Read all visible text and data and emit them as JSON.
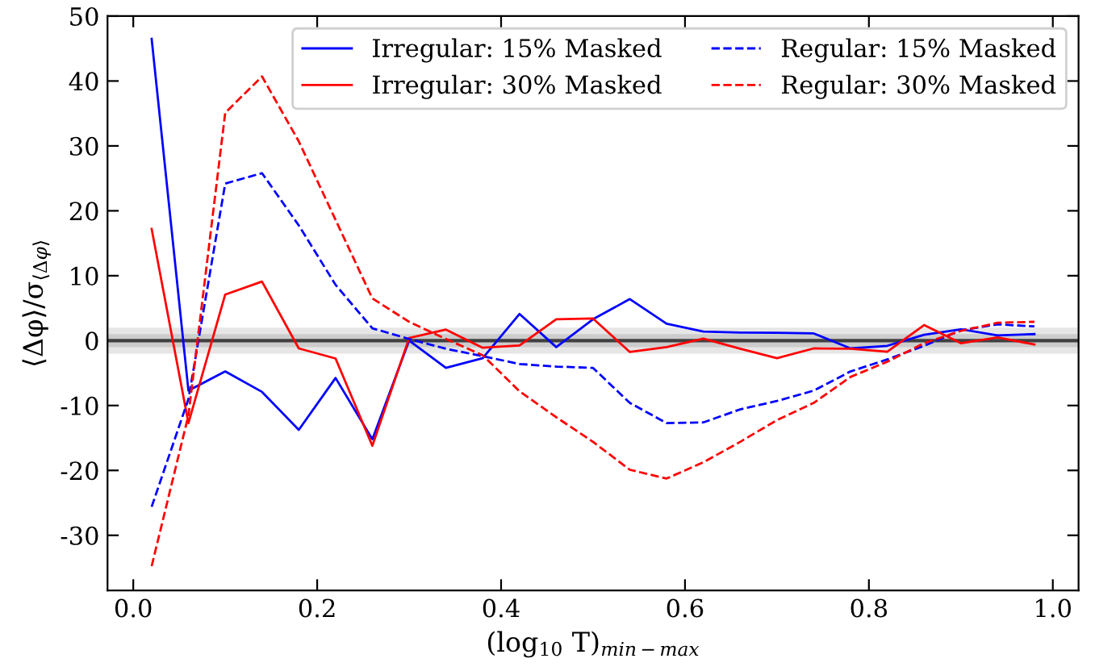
{
  "chart_data": {
    "type": "line",
    "xlabel": "(log$_{10}$ T)$_{min−max}$",
    "ylabel": "⟨Δφ⟩/σ$_{⟨Δφ⟩}$",
    "x": [
      0.02,
      0.06,
      0.1,
      0.14,
      0.18,
      0.22,
      0.26,
      0.3,
      0.34,
      0.38,
      0.42,
      0.46,
      0.5,
      0.54,
      0.58,
      0.62,
      0.66,
      0.7,
      0.74,
      0.78,
      0.82,
      0.86,
      0.9,
      0.94,
      0.98
    ],
    "series": [
      {
        "name": "Irregular: 15% Masked",
        "color": "#0000ff",
        "line_style": "solid",
        "values": [
          46.5,
          -7.7,
          -4.75,
          -7.9,
          -13.75,
          -5.75,
          -15.2,
          0,
          -4.2,
          -2.7,
          4.1,
          -1,
          3.3,
          6.4,
          2.6,
          1.4,
          1.25,
          1.2,
          1.1,
          -1.2,
          -0.8,
          0.9,
          1.75,
          0.8,
          1.0
        ]
      },
      {
        "name": "Irregular: 30% Masked",
        "color": "#ff0000",
        "line_style": "solid",
        "values": [
          17.2,
          -12.7,
          7.1,
          9.1,
          -1.2,
          -2.75,
          -16.2,
          0.4,
          1.7,
          -1.1,
          -0.75,
          3.3,
          3.4,
          -1.75,
          -1,
          0.3,
          -1.25,
          -2.7,
          -1.2,
          -1.25,
          -1.7,
          2.4,
          -0.4,
          0.5,
          -0.6
        ]
      },
      {
        "name": "Regular: 15% Masked",
        "color": "#0000ff",
        "line_style": "dashed",
        "values": [
          -25.6,
          -9,
          24.2,
          25.8,
          17.75,
          8.6,
          1.9,
          0.25,
          -1.25,
          -2.4,
          -3.6,
          -4,
          -4.2,
          -9.6,
          -12.7,
          -12.6,
          -10.6,
          -9.3,
          -7.7,
          -4.75,
          -2.9,
          -0.8,
          1.6,
          2.5,
          2.2
        ]
      },
      {
        "name": "Regular: 30% Masked",
        "color": "#ff0000",
        "line_style": "dashed",
        "values": [
          -34.75,
          -11.5,
          35.1,
          40.7,
          30.7,
          18.6,
          6.5,
          2.9,
          0.25,
          -2.25,
          -7.8,
          -11.8,
          -15.6,
          -19.9,
          -21.25,
          -18.75,
          -15.6,
          -12.25,
          -9.6,
          -5.6,
          -3.25,
          -0.4,
          1.5,
          2.75,
          2.9
        ]
      }
    ],
    "ref_lines": [
      {
        "axis": "y",
        "value": 0,
        "color": "#404040"
      }
    ],
    "bands": [
      {
        "axis": "y",
        "from": -2,
        "to": 2,
        "color": "#e6e6e6"
      },
      {
        "axis": "y",
        "from": -1,
        "to": 1,
        "color": "#cccccc"
      }
    ],
    "xlim": [
      -0.028,
      1.028
    ],
    "ylim": [
      -38.5,
      50
    ],
    "xticks": [
      {
        "value": 0,
        "label": "0.0"
      },
      0.2,
      0.4,
      0.6,
      0.8,
      {
        "value": 1,
        "label": "1.0"
      }
    ],
    "yticks": [
      -30,
      -20,
      -10,
      0,
      10,
      20,
      30,
      40,
      50
    ],
    "grid": false,
    "legend": "top right",
    "marker": "none"
  }
}
